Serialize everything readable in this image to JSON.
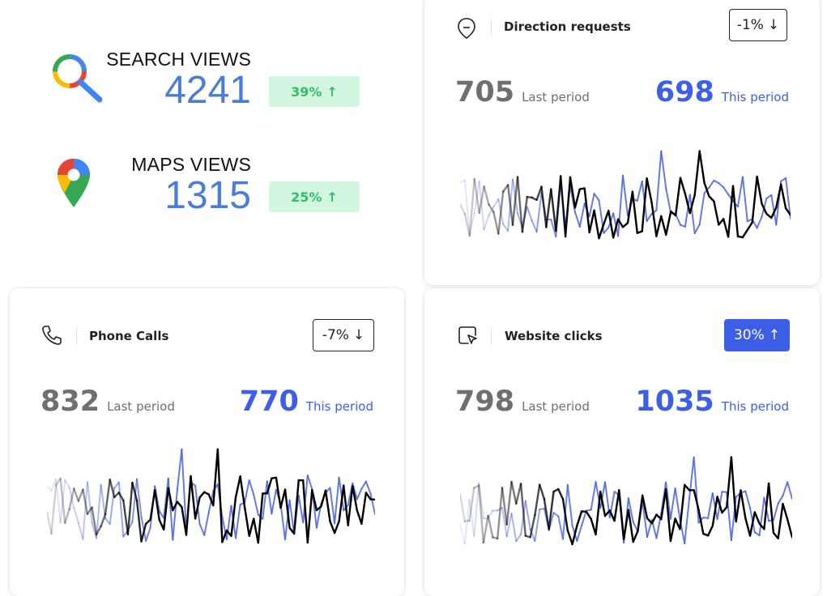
{
  "search_stat": {
    "label": "SEARCH VIEWS",
    "value": "4241",
    "change": "39%",
    "arrow": "↑",
    "icon": "google-search-icon"
  },
  "maps_stat": {
    "label": "MAPS VIEWS",
    "value": "1315",
    "change": "25%",
    "arrow": "↑",
    "icon": "google-maps-icon"
  },
  "cards": {
    "direction": {
      "title": "Direction requests",
      "icon": "direction-icon",
      "badge": "-1%",
      "badge_arrow": "↓",
      "last_value": "705",
      "last_label": "Last period",
      "this_value": "698",
      "this_label": "This period"
    },
    "phone": {
      "title": "Phone Calls",
      "icon": "phone-icon",
      "badge": "-7%",
      "badge_arrow": "↓",
      "last_value": "832",
      "last_label": "Last period",
      "this_value": "770",
      "this_label": "This period"
    },
    "website": {
      "title": "Website clicks",
      "icon": "cursor-click-icon",
      "badge": "30%",
      "badge_arrow": "↑",
      "last_value": "798",
      "last_label": "Last period",
      "this_value": "1035",
      "this_label": "This period"
    }
  },
  "colors": {
    "accent": "#3d5fe8",
    "value_blue": "#4a7cdb",
    "positive_bg": "#d3f6e1",
    "positive_text": "#2fbf64",
    "muted": "#6e6e73",
    "line_this": "#000000",
    "line_last": "#4a63e0"
  }
}
